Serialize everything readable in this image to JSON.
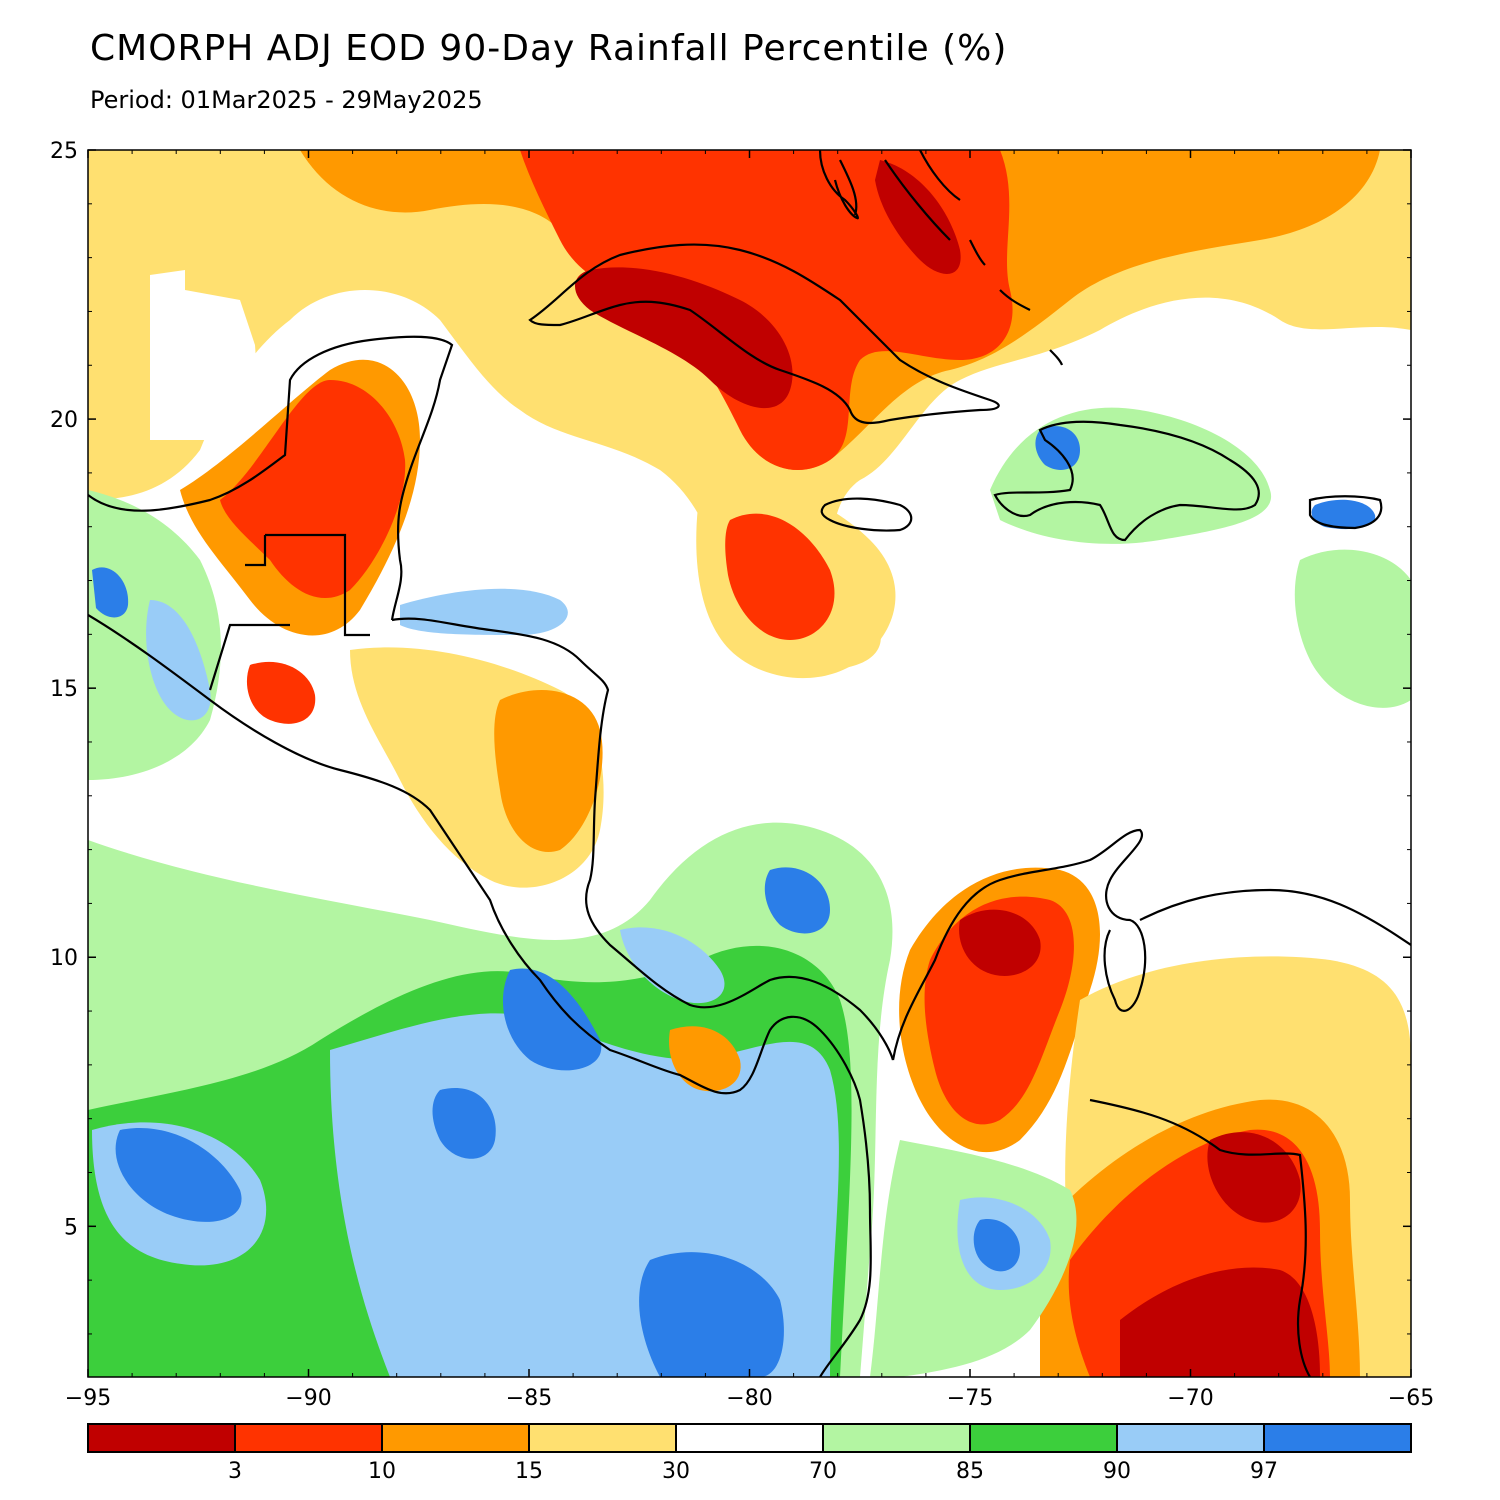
{
  "title": "CMORPH ADJ EOD 90-Day Rainfall Percentile (%)",
  "subtitle": "Period: 01Mar2025 - 29May2025",
  "map": {
    "lon_range": [
      -95,
      -65
    ],
    "lat_range": [
      2.2,
      25
    ],
    "x_ticks": [
      {
        "value": -95,
        "label": "−95"
      },
      {
        "value": -90,
        "label": "−90"
      },
      {
        "value": -85,
        "label": "−85"
      },
      {
        "value": -80,
        "label": "−80"
      },
      {
        "value": -75,
        "label": "−75"
      },
      {
        "value": -70,
        "label": "−70"
      },
      {
        "value": -65,
        "label": "−65"
      }
    ],
    "y_ticks": [
      {
        "value": 25,
        "label": "25"
      },
      {
        "value": 20,
        "label": "20"
      },
      {
        "value": 15,
        "label": "15"
      },
      {
        "value": 10,
        "label": "10"
      },
      {
        "value": 5,
        "label": "5"
      }
    ]
  },
  "legend": {
    "colors": [
      "#c00000",
      "#ff3300",
      "#ff9900",
      "#ffe070",
      "#ffffff",
      "#b3f5a2",
      "#3ccf3c",
      "#99ccf7",
      "#2b7ee8"
    ],
    "labels": [
      "3",
      "10",
      "15",
      "30",
      "70",
      "85",
      "90",
      "97"
    ]
  },
  "palette": {
    "red": "#ff3300",
    "dark_red": "#c00000",
    "orange": "#ff9900",
    "yellow": "#ffe070",
    "light_green": "#b3f5a2",
    "green": "#3ccf3c",
    "light_blue": "#99ccf7",
    "blue": "#2b7ee8",
    "coast": "#000000"
  }
}
